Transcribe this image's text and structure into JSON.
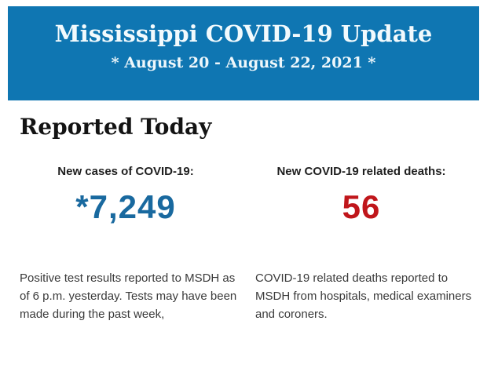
{
  "banner": {
    "title": "Mississippi COVID-19 Update",
    "date_range": "* August 20 - August 22, 2021 *",
    "background_color": "#0f76b2",
    "text_color": "#f2fafd"
  },
  "section": {
    "heading": "Reported Today"
  },
  "stats": {
    "cases": {
      "label": "New cases of COVID-19:",
      "value": "*7,249",
      "color": "#19699f",
      "note_lines": [
        "Positive test results reported to MSDH as",
        "of 6 p.m. yesterday. Tests may have been",
        "made during the past week,"
      ]
    },
    "deaths": {
      "label": "New COVID-19 related deaths:",
      "value": "56",
      "color": "#c0161b",
      "note_lines": [
        "COVID-19 related deaths reported to",
        "MSDH from hospitals, medical examiners",
        "and coroners."
      ]
    }
  }
}
